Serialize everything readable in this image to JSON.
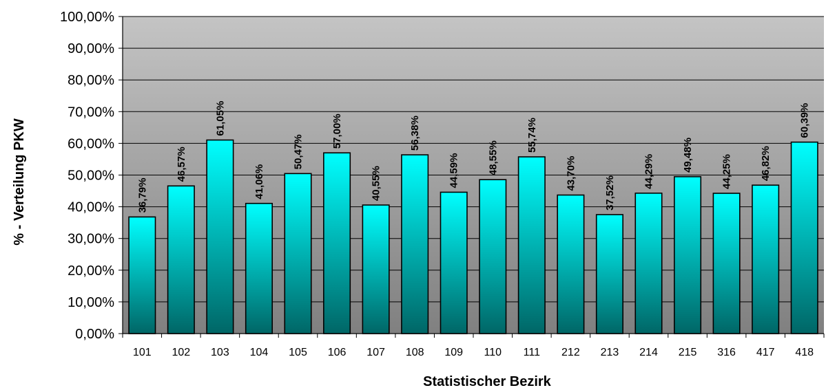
{
  "chart_data": {
    "type": "bar",
    "title": "",
    "xlabel": "Statistischer Bezirk",
    "ylabel": "% - Verteilung PKW",
    "ylim": [
      0,
      100
    ],
    "grid": true,
    "legend": "none",
    "y_ticks": [
      "0,00%",
      "10,00%",
      "20,00%",
      "30,00%",
      "40,00%",
      "50,00%",
      "60,00%",
      "70,00%",
      "80,00%",
      "90,00%",
      "100,00%"
    ],
    "categories": [
      "101",
      "102",
      "103",
      "104",
      "105",
      "106",
      "107",
      "108",
      "109",
      "110",
      "111",
      "212",
      "213",
      "214",
      "215",
      "316",
      "417",
      "418"
    ],
    "values": [
      36.79,
      46.57,
      61.05,
      41.06,
      50.47,
      57.0,
      40.55,
      56.38,
      44.59,
      48.55,
      55.74,
      43.7,
      37.52,
      44.29,
      49.48,
      44.25,
      46.82,
      60.39
    ],
    "data_labels": [
      "36,79%",
      "46,57%",
      "61,05%",
      "41,06%",
      "50,47%",
      "57,00%",
      "40,55%",
      "56,38%",
      "44,59%",
      "48,55%",
      "55,74%",
      "43,70%",
      "37,52%",
      "44,29%",
      "49,48%",
      "44,25%",
      "46,82%",
      "60,39%"
    ],
    "colors": {
      "bar_top": "#00ffff",
      "bar_bottom": "#006666",
      "plot_top": "#c4c4c4",
      "plot_bottom": "#808080",
      "gridline": "#000000",
      "bar_outline": "#000000"
    }
  }
}
